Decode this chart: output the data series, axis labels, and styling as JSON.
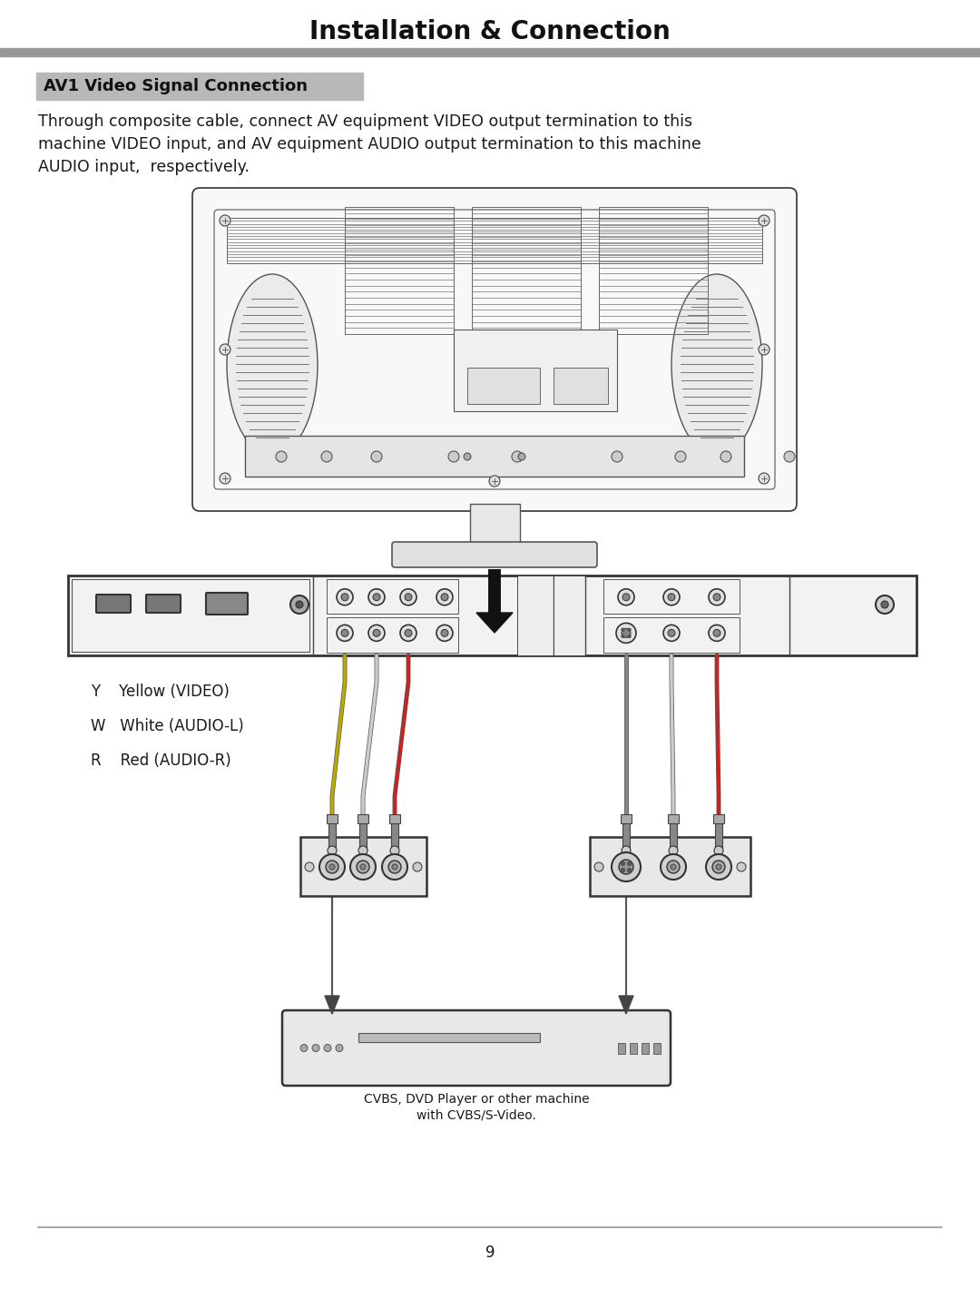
{
  "page_title": "Installation & Connection",
  "section_title": "AV1 Video Signal Connection",
  "section_title_bg": "#b8b8b8",
  "body_text_line1": "Through composite cable, connect AV equipment VIDEO output termination to this",
  "body_text_line2": "machine VIDEO input, and AV equipment AUDIO output termination to this machine",
  "body_text_line3": "AUDIO input,  respectively.",
  "legend_y": "Y    Yellow (VIDEO)",
  "legend_w": "W   White (AUDIO-L)",
  "legend_r": "R    Red (AUDIO-R)",
  "caption_line1": "CVBS, DVD Player or other machine",
  "caption_line2": "with CVBS/S-Video.",
  "page_number": "9",
  "bg_color": "#ffffff",
  "text_color": "#1a1a1a",
  "header_bar_color": "#999999",
  "footer_bar_color": "#999999"
}
